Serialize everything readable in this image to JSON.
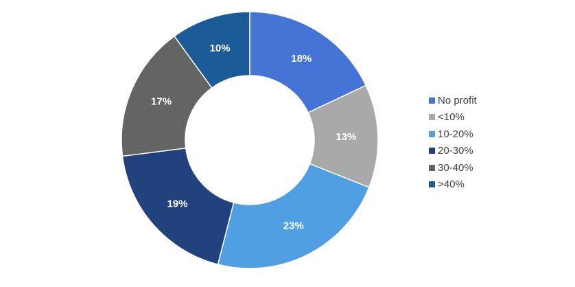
{
  "chart_data": {
    "type": "pie",
    "donut": true,
    "categories": [
      "No profit",
      "<10%",
      "10-20%",
      "20-30%",
      "30-40%",
      ">40%"
    ],
    "values": [
      18,
      13,
      23,
      19,
      17,
      10
    ],
    "labels": [
      "18%",
      "13%",
      "23%",
      "19%",
      "17%",
      "10%"
    ],
    "colors": [
      "#4475d6",
      "#a9a9a9",
      "#509fe3",
      "#22427e",
      "#646464",
      "#1b5b97"
    ],
    "legend_position": "right"
  }
}
